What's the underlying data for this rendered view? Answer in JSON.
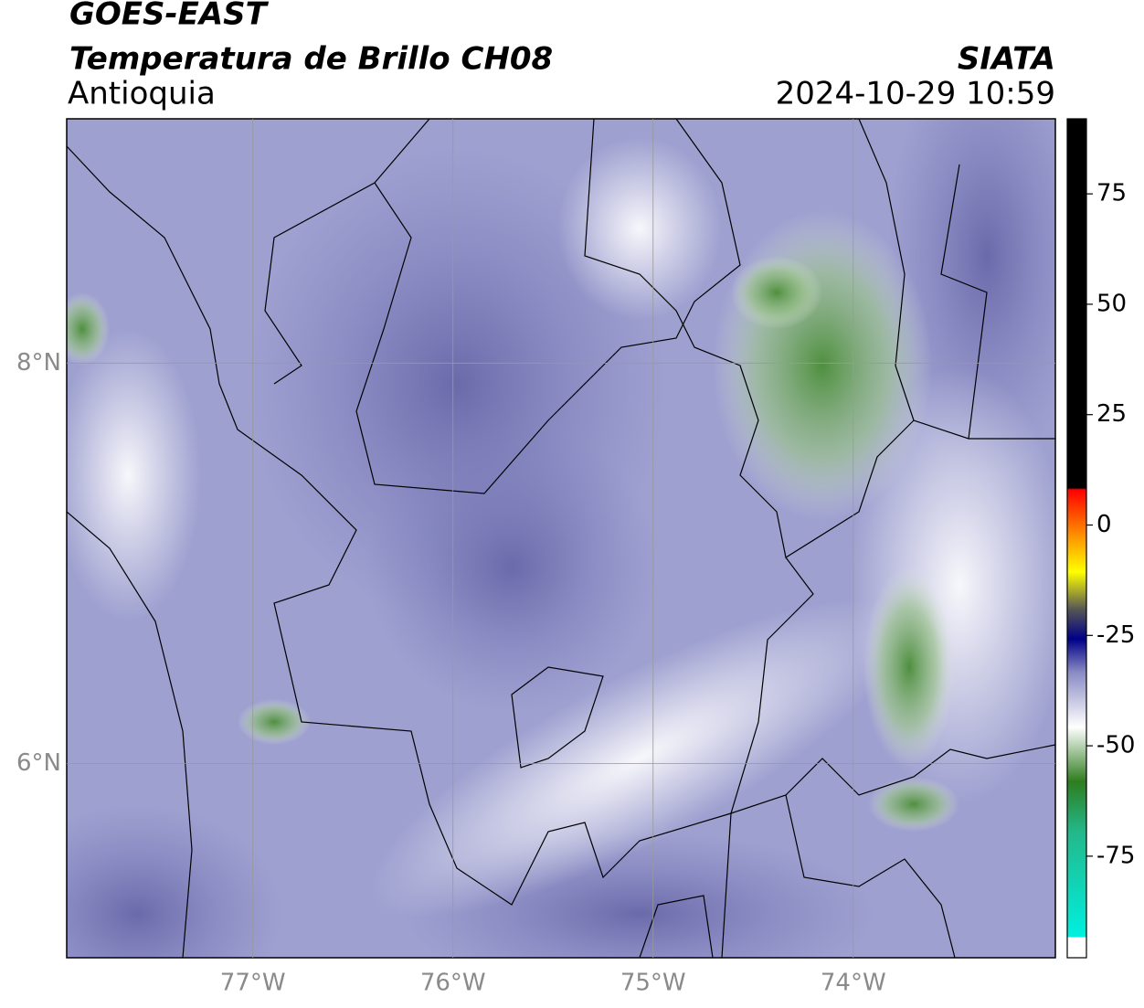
{
  "header": {
    "title": "GOES-EAST",
    "subtitle": "Temperatura de Brillo CH08",
    "region": "Antioquia",
    "source": "SIATA",
    "datetime": "2024-10-29 10:59"
  },
  "map": {
    "xlim": [
      -77.93,
      -72.99
    ],
    "ylim": [
      5.03,
      9.22
    ],
    "xticks": [
      {
        "value": -77,
        "label": "77°W"
      },
      {
        "value": -76,
        "label": "76°W"
      },
      {
        "value": -75,
        "label": "75°W"
      },
      {
        "value": -74,
        "label": "74°W"
      }
    ],
    "yticks": [
      {
        "value": 8,
        "label": "8°N"
      },
      {
        "value": 6,
        "label": "6°N"
      }
    ],
    "grid": true
  },
  "colorbar": {
    "lim": [
      -98,
      92
    ],
    "ticks": [
      75,
      50,
      25,
      0,
      -25,
      -50,
      -75
    ]
  }
}
